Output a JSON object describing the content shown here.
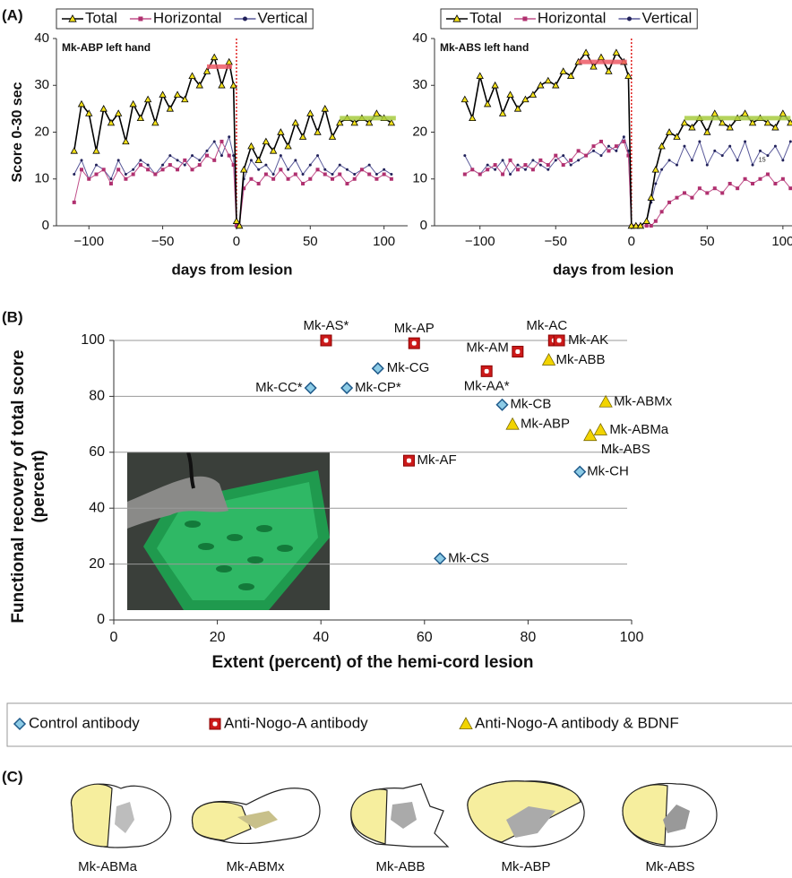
{
  "chart_data": [
    {
      "type": "line",
      "panel_label": "(A)",
      "title": "Mk-ABP left hand",
      "xlabel": "days from lesion",
      "ylabel": "Score 0-30 sec",
      "x": [
        -110,
        -105,
        -100,
        -95,
        -90,
        -85,
        -80,
        -75,
        -70,
        -65,
        -60,
        -55,
        -50,
        -45,
        -40,
        -35,
        -30,
        -25,
        -20,
        -15,
        -10,
        -5,
        -2,
        0,
        2,
        5,
        10,
        15,
        20,
        25,
        30,
        35,
        40,
        45,
        50,
        55,
        60,
        65,
        70,
        75,
        80,
        85,
        90,
        95,
        100,
        105
      ],
      "series": [
        {
          "name": "Total",
          "color": "#000000",
          "marker": "triangle",
          "marker_color": "#f4e11a",
          "values": [
            16,
            26,
            24,
            16,
            25,
            22,
            24,
            18,
            26,
            23,
            27,
            22,
            28,
            25,
            28,
            27,
            32,
            30,
            33,
            36,
            30,
            35,
            30,
            1,
            0,
            12,
            17,
            14,
            18,
            16,
            20,
            17,
            22,
            19,
            24,
            20,
            25,
            19,
            22,
            23,
            22,
            23,
            22,
            24,
            23,
            22
          ]
        },
        {
          "name": "Horizontal",
          "color": "#c0508a",
          "marker": "square",
          "marker_color": "#b0306f",
          "values": [
            5,
            12,
            10,
            11,
            12,
            9,
            12,
            10,
            11,
            13,
            12,
            11,
            12,
            13,
            12,
            14,
            12,
            13,
            15,
            14,
            18,
            15,
            13,
            0,
            0,
            8,
            10,
            9,
            11,
            10,
            12,
            10,
            11,
            9,
            10,
            12,
            11,
            10,
            11,
            9,
            10,
            12,
            11,
            10,
            11,
            10
          ]
        },
        {
          "name": "Vertical",
          "color": "#5a5a9a",
          "marker": "dot",
          "marker_color": "#22225a",
          "values": [
            11,
            14,
            10,
            13,
            12,
            10,
            14,
            11,
            12,
            14,
            13,
            11,
            13,
            15,
            14,
            13,
            15,
            14,
            16,
            18,
            15,
            19,
            15,
            1,
            0,
            10,
            14,
            12,
            13,
            11,
            15,
            12,
            14,
            11,
            13,
            15,
            12,
            11,
            13,
            12,
            11,
            12,
            13,
            11,
            12,
            11
          ]
        }
      ],
      "reference_lines": [
        {
          "x": [
            -20,
            -3
          ],
          "y": 34,
          "color": "#ee5a66"
        },
        {
          "x": [
            70,
            108
          ],
          "y": 23,
          "color": "#a8cc40"
        }
      ],
      "lesion_x": 0,
      "lesion_color": "#e0201e",
      "xlim": [
        -122,
        116
      ],
      "ylim": [
        0,
        40
      ],
      "xticks": [
        {
          "value": -100,
          "label": "−100"
        },
        {
          "value": -50,
          "label": "−50"
        },
        0,
        50,
        100
      ],
      "yticks": [
        0,
        10,
        20,
        30,
        40
      ],
      "grid": false,
      "legend": "top"
    },
    {
      "type": "line",
      "title": "Mk-ABS left hand",
      "xlabel": "days from lesion",
      "x": [
        -110,
        -105,
        -100,
        -95,
        -90,
        -85,
        -80,
        -75,
        -70,
        -65,
        -60,
        -55,
        -50,
        -45,
        -40,
        -35,
        -30,
        -25,
        -20,
        -15,
        -10,
        -5,
        -2,
        0,
        3,
        6,
        10,
        13,
        16,
        20,
        25,
        30,
        35,
        40,
        45,
        50,
        55,
        60,
        65,
        70,
        75,
        80,
        85,
        90,
        95,
        100,
        105
      ],
      "series": [
        {
          "name": "Total",
          "color": "#000000",
          "marker": "triangle",
          "marker_color": "#f4e11a",
          "values": [
            27,
            23,
            32,
            26,
            30,
            24,
            28,
            25,
            27,
            28,
            30,
            31,
            30,
            33,
            32,
            35,
            37,
            34,
            36,
            33,
            37,
            35,
            32,
            0,
            0,
            0,
            1,
            6,
            12,
            17,
            20,
            19,
            22,
            21,
            23,
            20,
            24,
            22,
            21,
            23,
            24,
            22,
            23,
            22,
            21,
            24,
            22
          ]
        },
        {
          "name": "Horizontal",
          "color": "#c0508a",
          "marker": "square",
          "marker_color": "#b0306f",
          "values": [
            11,
            12,
            11,
            12,
            13,
            11,
            14,
            12,
            13,
            12,
            14,
            13,
            15,
            13,
            14,
            16,
            15,
            17,
            18,
            16,
            17,
            18,
            15,
            0,
            0,
            0,
            0,
            0,
            1,
            3,
            5,
            6,
            7,
            6,
            8,
            7,
            8,
            7,
            9,
            8,
            10,
            9,
            10,
            11,
            9,
            10,
            8
          ]
        },
        {
          "name": "Vertical",
          "color": "#5a5a9a",
          "marker": "dot",
          "marker_color": "#22225a",
          "values": [
            15,
            12,
            11,
            13,
            12,
            14,
            11,
            13,
            12,
            14,
            13,
            12,
            14,
            15,
            13,
            14,
            15,
            16,
            15,
            17,
            16,
            19,
            16,
            0,
            0,
            0,
            1,
            5,
            9,
            12,
            14,
            13,
            17,
            14,
            18,
            13,
            16,
            15,
            17,
            14,
            18,
            13,
            16,
            15,
            17,
            14,
            18
          ]
        }
      ],
      "reference_lines": [
        {
          "x": [
            -35,
            -3
          ],
          "y": 35,
          "color": "#ee5a66"
        },
        {
          "x": [
            35,
            105
          ],
          "y": 23,
          "color": "#a8cc40"
        }
      ],
      "annotations": [
        {
          "text": "15",
          "x": 84,
          "y": 14
        }
      ],
      "lesion_x": 0,
      "lesion_color": "#e0201e",
      "xlim": [
        -130,
        106
      ],
      "ylim": [
        0,
        40
      ],
      "xticks": [
        {
          "value": -100,
          "label": "−100"
        },
        {
          "value": -50,
          "label": "−50"
        },
        0,
        50,
        100
      ],
      "yticks": [
        0,
        10,
        20,
        30,
        40
      ],
      "grid": false,
      "legend": "top"
    },
    {
      "type": "scatter",
      "panel_label": "(B)",
      "xlabel": "Extent (percent) of the hemi-cord lesion",
      "ylabel": "Functional recovery of total score (percent)",
      "series": [
        {
          "name": "Control antibody",
          "marker": "diamond",
          "color": "#8ccbe6",
          "x": [
            38,
            45,
            51,
            75,
            90,
            63
          ],
          "values": [
            83,
            83,
            90,
            77,
            53,
            22
          ],
          "labels": [
            "Mk-CC*",
            "Mk-CP*",
            "Mk-CG",
            "Mk-CB",
            "Mk-CH",
            "Mk-CS"
          ]
        },
        {
          "name": "Anti-Nogo-A antibody",
          "marker": "square",
          "color": "#cc1a1a",
          "x": [
            41,
            58,
            85,
            86,
            78,
            72,
            57
          ],
          "values": [
            100,
            99,
            100,
            100,
            96,
            89,
            57
          ],
          "labels": [
            "Mk-AS*",
            "Mk-AP",
            "Mk-AC",
            "Mk-AK",
            "Mk-AM",
            "Mk-AA*",
            "Mk-AF"
          ]
        },
        {
          "name": "Anti-Nogo-A antibody & BDNF",
          "marker": "triangle",
          "color": "#f2d400",
          "x": [
            84,
            95,
            77,
            94,
            92
          ],
          "values": [
            93,
            78,
            70,
            68,
            66
          ],
          "labels": [
            "Mk-ABB",
            "Mk-ABMx",
            "Mk-ABP",
            "Mk-ABMa",
            "Mk-ABS"
          ]
        }
      ],
      "xlim": [
        0,
        100
      ],
      "ylim": [
        0,
        100
      ],
      "xticks": [
        0,
        20,
        40,
        60,
        80,
        100
      ],
      "yticks": [
        0,
        20,
        40,
        60,
        80,
        100
      ],
      "grid": true,
      "legend": "bottom"
    }
  ],
  "panel_c": {
    "label": "(C)",
    "labels": [
      "Mk-ABMa",
      "Mk-ABMx",
      "Mk-ABB",
      "Mk-ABP",
      "Mk-ABS"
    ]
  }
}
